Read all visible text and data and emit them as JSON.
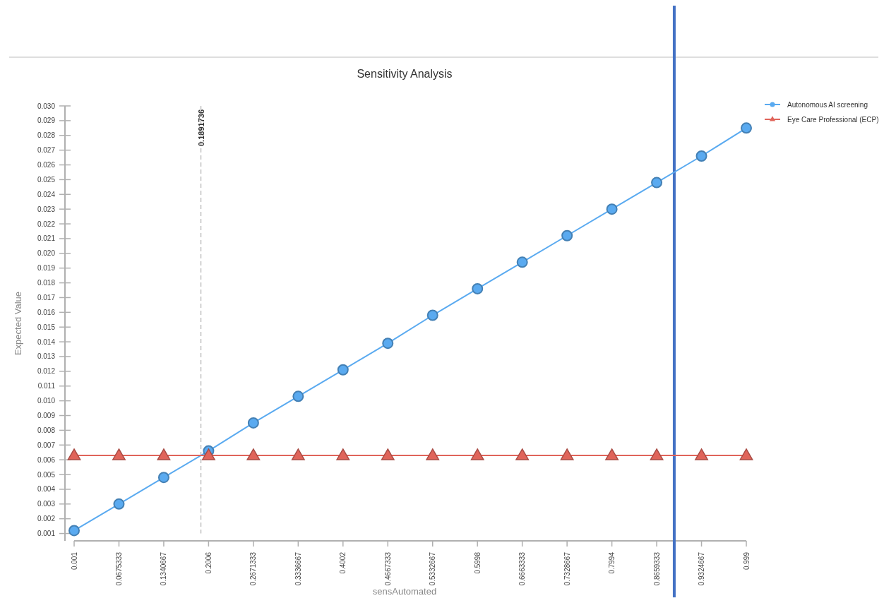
{
  "chart_data": {
    "type": "line",
    "title": "Sensitivity Analysis",
    "xlabel": "sensAutomated",
    "ylabel": "Expected Value",
    "x": [
      0.001,
      0.0675333,
      0.1340667,
      0.2006,
      0.2671333,
      0.3336667,
      0.4002,
      0.4667333,
      0.5332667,
      0.5998,
      0.6663333,
      0.7328667,
      0.7994,
      0.8659333,
      0.9324667,
      0.999
    ],
    "series": [
      {
        "name": "Autonomous AI screening",
        "color": "#5aaaf0",
        "marker": "circle",
        "values": [
          0.0012,
          0.003,
          0.0048,
          0.0066,
          0.0085,
          0.0103,
          0.0121,
          0.0139,
          0.0158,
          0.0176,
          0.0194,
          0.0212,
          0.023,
          0.0248,
          0.0266,
          0.0285
        ]
      },
      {
        "name": "Eye Care Professional (ECP)",
        "color": "#e0645a",
        "marker": "triangle",
        "values": [
          0.0063,
          0.0063,
          0.0063,
          0.0063,
          0.0063,
          0.0063,
          0.0063,
          0.0063,
          0.0063,
          0.0063,
          0.0063,
          0.0063,
          0.0063,
          0.0063,
          0.0063,
          0.0063
        ]
      }
    ],
    "xlim": [
      0.001,
      0.999
    ],
    "xticks": [
      0.001,
      0.0675333,
      0.1340667,
      0.2006,
      0.2671333,
      0.3336667,
      0.4002,
      0.4667333,
      0.5332667,
      0.5998,
      0.6663333,
      0.7328667,
      0.7994,
      0.8659333,
      0.9324667,
      0.999
    ],
    "ylim": [
      0.0005,
      0.03
    ],
    "yticks": [
      {
        "value": 0.001,
        "label": "0.001"
      },
      {
        "value": 0.002,
        "label": "0.002"
      },
      {
        "value": 0.003,
        "label": "0.003"
      },
      {
        "value": 0.004,
        "label": "0.004"
      },
      {
        "value": 0.005,
        "label": "0.005"
      },
      {
        "value": 0.006,
        "label": "0.006"
      },
      {
        "value": 0.007,
        "label": "0.007"
      },
      {
        "value": 0.008,
        "label": "0.008"
      },
      {
        "value": 0.009,
        "label": "0.009"
      },
      {
        "value": 0.01,
        "label": "0.010"
      },
      {
        "value": 0.011,
        "label": "0.011"
      },
      {
        "value": 0.012,
        "label": "0.012"
      },
      {
        "value": 0.013,
        "label": "0.013"
      },
      {
        "value": 0.014,
        "label": "0.014"
      },
      {
        "value": 0.015,
        "label": "0.015"
      },
      {
        "value": 0.016,
        "label": "0.016"
      },
      {
        "value": 0.017,
        "label": "0.017"
      },
      {
        "value": 0.018,
        "label": "0.018"
      },
      {
        "value": 0.019,
        "label": "0.019"
      },
      {
        "value": 0.02,
        "label": "0.020"
      },
      {
        "value": 0.021,
        "label": "0.021"
      },
      {
        "value": 0.022,
        "label": "0.022"
      },
      {
        "value": 0.023,
        "label": "0.023"
      },
      {
        "value": 0.024,
        "label": "0.024"
      },
      {
        "value": 0.025,
        "label": "0.025"
      },
      {
        "value": 0.026,
        "label": "0.026"
      },
      {
        "value": 0.027,
        "label": "0.027"
      },
      {
        "value": 0.028,
        "label": "0.028"
      },
      {
        "value": 0.029,
        "label": "0.029"
      },
      {
        "value": 0.03,
        "label": "0.030"
      }
    ],
    "ref_lines": [
      {
        "axis": "x",
        "value": 0.1891736,
        "label": "0.1891736",
        "color": "#c0c0c0",
        "line_style": "dashed"
      },
      {
        "axis": "x",
        "value": 0.892,
        "color": "#4472c4",
        "line_style": "solid"
      }
    ],
    "grid": false,
    "legend": "top right",
    "line_style": "solid"
  }
}
